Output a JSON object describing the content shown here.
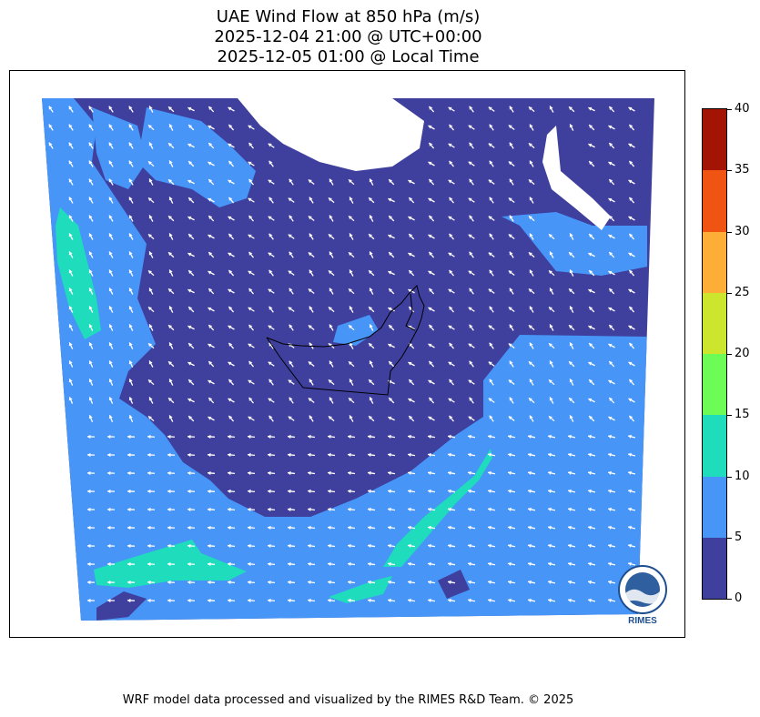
{
  "title": {
    "line1": "UAE Wind Flow at 850 hPa (m/s)",
    "line2": "2025-12-04 21:00 @ UTC+00:00",
    "line3": "2025-12-05 01:00 @ Local Time"
  },
  "colorbar": {
    "ticks": [
      "0",
      "5",
      "10",
      "15",
      "20",
      "25",
      "30",
      "35",
      "40"
    ],
    "range": [
      0,
      40
    ],
    "bins": [
      {
        "from": 0,
        "to": 5,
        "color": "#3f3f9e"
      },
      {
        "from": 5,
        "to": 10,
        "color": "#4695f7"
      },
      {
        "from": 10,
        "to": 15,
        "color": "#1fdcbd"
      },
      {
        "from": 15,
        "to": 20,
        "color": "#6dfb55"
      },
      {
        "from": 20,
        "to": 25,
        "color": "#cbe62c"
      },
      {
        "from": 25,
        "to": 30,
        "color": "#fcae36"
      },
      {
        "from": 30,
        "to": 35,
        "color": "#ef5413"
      },
      {
        "from": 35,
        "to": 40,
        "color": "#a31404"
      }
    ]
  },
  "map": {
    "region": "UAE",
    "field": "wind speed at 850 hPa",
    "units": "m/s",
    "arrow_color": "#ffffff",
    "boundary_color": "#000000"
  },
  "logo": {
    "text": "RIMES",
    "color": "#1d4f8f"
  },
  "credit": "WRF model data processed and visualized by the RIMES R&D Team. © 2025"
}
